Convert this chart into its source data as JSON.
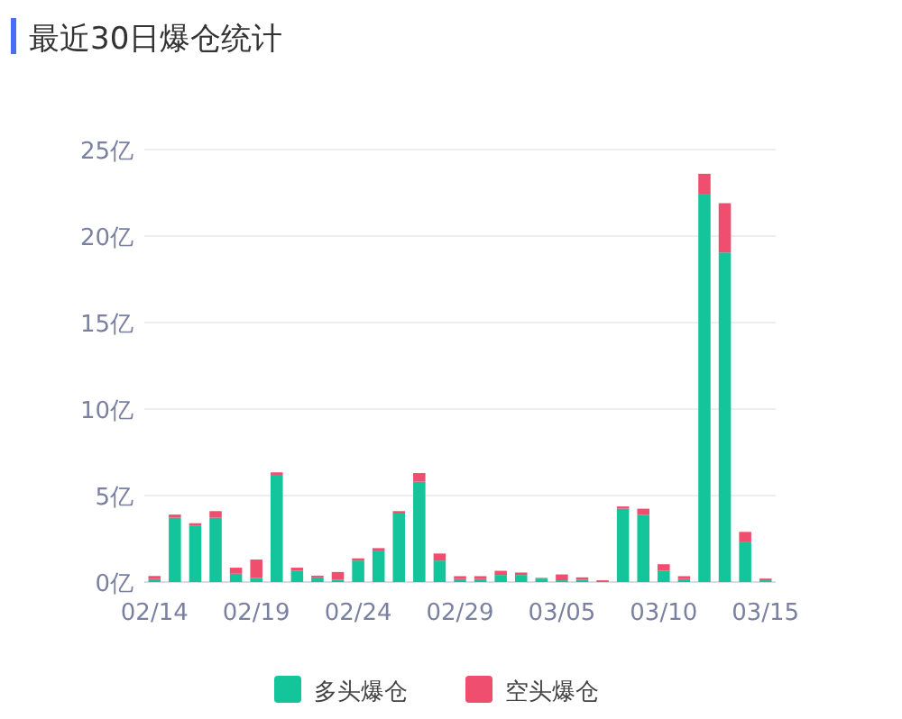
{
  "chart_data": {
    "type": "bar",
    "title": "最近30日爆仓统计",
    "stacked": true,
    "grid": "y",
    "legend": "bottom",
    "categories": [
      "02/14",
      null,
      null,
      null,
      null,
      "02/19",
      null,
      null,
      null,
      null,
      "02/24",
      null,
      null,
      null,
      null,
      "02/29",
      null,
      null,
      null,
      null,
      "03/05",
      null,
      null,
      null,
      null,
      "03/10",
      null,
      null,
      null,
      null,
      "03/15"
    ],
    "ylim": [
      0,
      25
    ],
    "yticks": [
      {
        "value": 0,
        "label": "0亿"
      },
      {
        "value": 5,
        "label": "5亿"
      },
      {
        "value": 10,
        "label": "10亿"
      },
      {
        "value": 15,
        "label": "15亿"
      },
      {
        "value": 20,
        "label": "20亿"
      },
      {
        "value": 25,
        "label": "25亿"
      }
    ],
    "series": [
      {
        "name": "多头爆仓",
        "color": "#14c59b",
        "values": [
          0.17,
          3.72,
          3.27,
          3.72,
          0.48,
          0.24,
          6.2,
          0.66,
          0.27,
          0.13,
          1.24,
          1.82,
          3.96,
          5.8,
          1.24,
          0.17,
          0.17,
          0.41,
          0.41,
          0.2,
          0.1,
          0.13,
          null,
          4.24,
          3.89,
          0.65,
          0.17,
          22.4,
          19.05,
          2.3,
          0.1
        ]
      },
      {
        "name": "空头爆仓",
        "color": "#f04e6e",
        "values": [
          0.18,
          0.18,
          0.13,
          0.38,
          0.35,
          1.06,
          0.14,
          0.17,
          0.1,
          0.45,
          0.13,
          0.14,
          0.14,
          0.5,
          0.41,
          0.17,
          0.17,
          0.24,
          0.14,
          0.04,
          0.34,
          0.14,
          0.1,
          0.13,
          0.35,
          0.38,
          0.17,
          1.2,
          2.85,
          0.6,
          0.1
        ]
      }
    ]
  }
}
